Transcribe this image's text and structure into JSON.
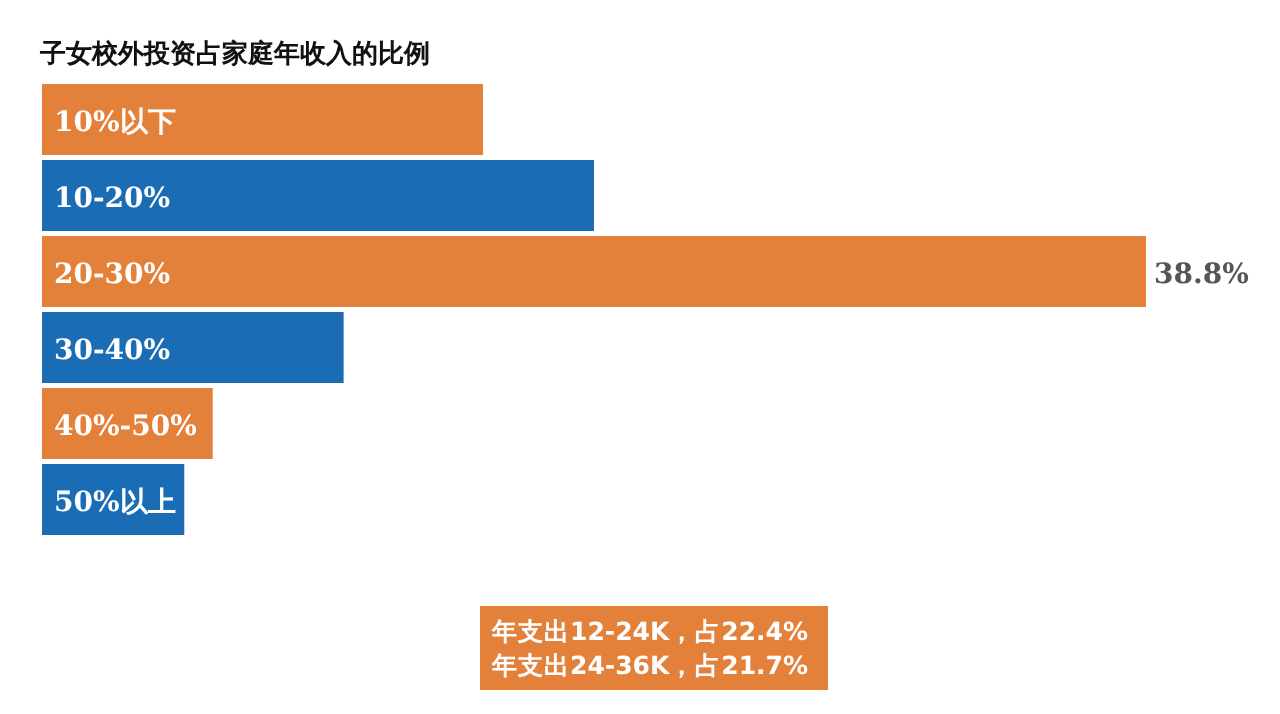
{
  "chart_data": {
    "type": "bar",
    "orientation": "horizontal",
    "title": "子女校外投资占家庭年收入的比例",
    "categories": [
      "10%以下",
      "10-20%",
      "20-30%",
      "30-40%",
      "40%-50%",
      "50%以上"
    ],
    "values": [
      15.5,
      19.4,
      38.8,
      10.6,
      6.0,
      5.0
    ],
    "colors": [
      "#e3813a",
      "#1a6db5",
      "#e3813a",
      "#1a6db5",
      "#e3813a",
      "#1a6db5"
    ],
    "value_labels": [
      null,
      null,
      "38.8%",
      null,
      null,
      null
    ],
    "annotations": [
      "年支出12-24K，占22.4%",
      "年支出24-36K，占21.7%"
    ]
  }
}
